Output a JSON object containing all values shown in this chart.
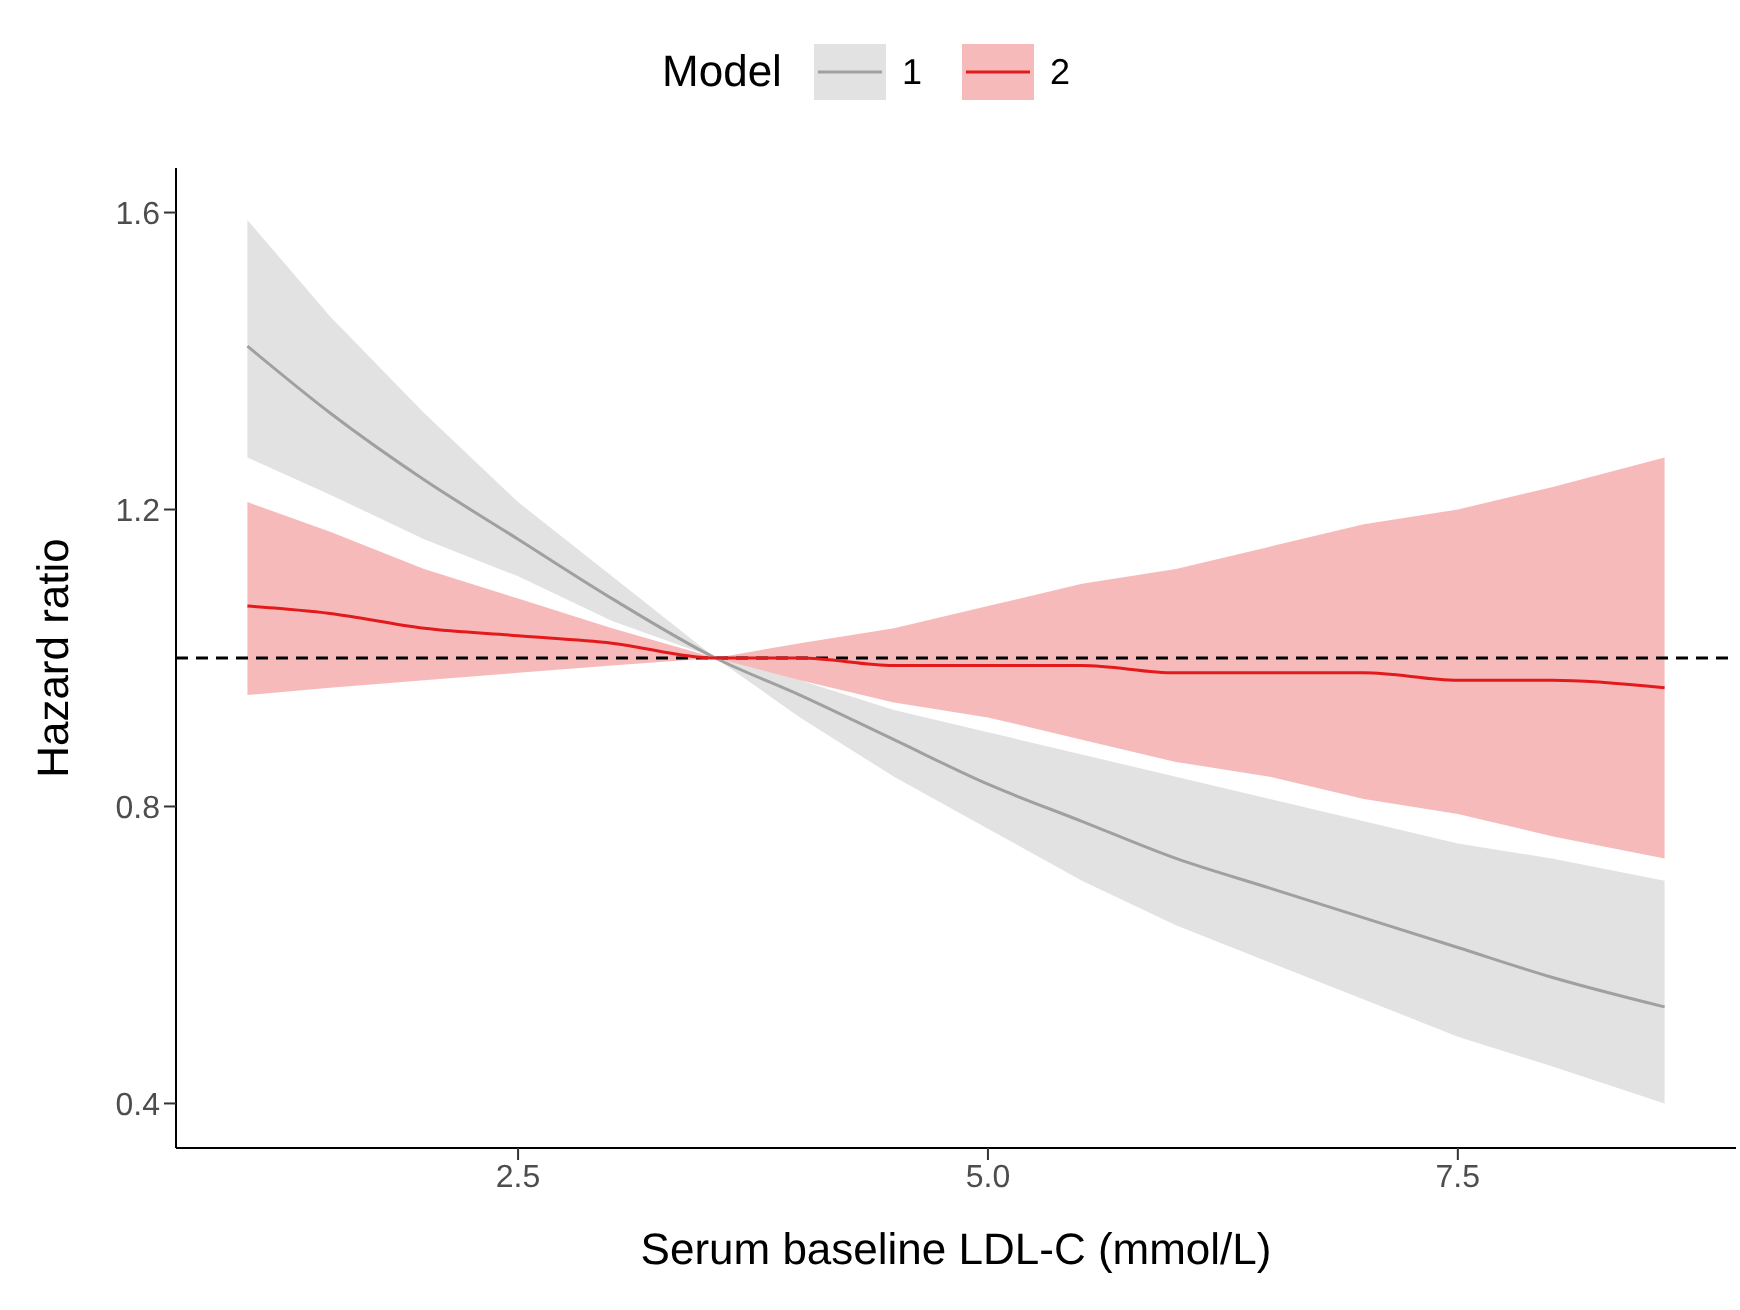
{
  "chart_data": {
    "type": "line",
    "xlabel": "Serum baseline LDL-C (mmol/L)",
    "ylabel": "Hazard ratio",
    "legend_title": "Model",
    "legend": "top",
    "x": [
      1.06,
      1.5,
      2,
      2.5,
      3,
      3.55,
      4,
      4.5,
      5,
      5.5,
      6,
      6.5,
      7,
      7.5,
      8,
      8.6
    ],
    "series": [
      {
        "name": "1",
        "color": "#a0a0a0",
        "values": [
          1.42,
          1.33,
          1.24,
          1.16,
          1.08,
          1.0,
          0.95,
          0.89,
          0.83,
          0.78,
          0.73,
          0.69,
          0.65,
          0.61,
          0.57,
          0.53
        ],
        "lower": [
          1.27,
          1.22,
          1.16,
          1.11,
          1.05,
          1.0,
          0.92,
          0.84,
          0.77,
          0.7,
          0.64,
          0.59,
          0.54,
          0.49,
          0.45,
          0.4
        ],
        "upper": [
          1.59,
          1.46,
          1.33,
          1.21,
          1.11,
          1.0,
          0.97,
          0.93,
          0.9,
          0.87,
          0.84,
          0.81,
          0.78,
          0.75,
          0.73,
          0.7
        ]
      },
      {
        "name": "2",
        "color": "#e31a1c",
        "values": [
          1.07,
          1.06,
          1.04,
          1.03,
          1.02,
          1.0,
          1.0,
          0.99,
          0.99,
          0.99,
          0.98,
          0.98,
          0.98,
          0.97,
          0.97,
          0.96
        ],
        "lower": [
          0.95,
          0.96,
          0.97,
          0.98,
          0.99,
          1.0,
          0.97,
          0.94,
          0.92,
          0.89,
          0.86,
          0.84,
          0.81,
          0.79,
          0.76,
          0.73
        ],
        "upper": [
          1.21,
          1.17,
          1.12,
          1.08,
          1.04,
          1.0,
          1.02,
          1.04,
          1.07,
          1.1,
          1.12,
          1.15,
          1.18,
          1.2,
          1.23,
          1.27
        ]
      }
    ],
    "xlim": [
      0.68,
      8.98
    ],
    "xticks": [
      {
        "value": 2.5,
        "label": "2.5"
      },
      {
        "value": 5,
        "label": "5.0"
      },
      {
        "value": 7.5,
        "label": "7.5"
      }
    ],
    "ylim": [
      0.34,
      1.66
    ],
    "yticks": [
      0.4,
      0.8,
      1.2,
      1.6
    ],
    "ref_lines": [
      {
        "axis": "y",
        "value": 1,
        "line_style": "dashed",
        "color": "#000000"
      }
    ],
    "grid": false,
    "marker": "none",
    "line_style": "solid"
  }
}
